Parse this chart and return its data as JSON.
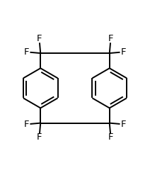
{
  "bg_color": "#ffffff",
  "line_color": "#000000",
  "lw": 1.4,
  "dbo": 0.04,
  "fs": 9.5,
  "fig_width": 2.12,
  "fig_height": 2.54,
  "dpi": 100,
  "xlim": [
    -1.0,
    1.0
  ],
  "ylim": [
    -1.15,
    1.1
  ]
}
